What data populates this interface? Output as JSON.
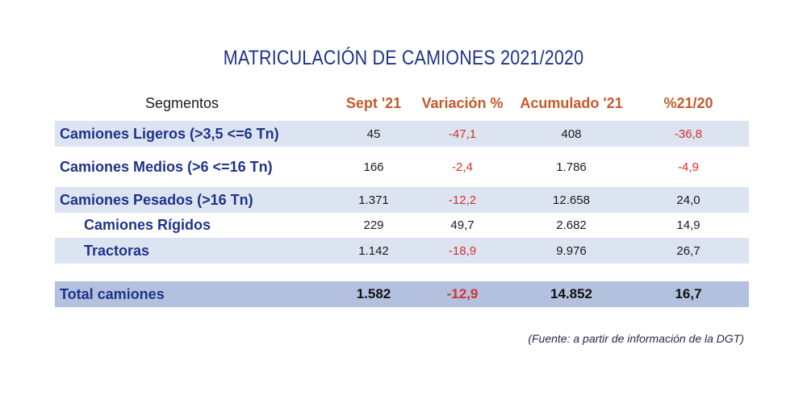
{
  "title": "MATRICULACIÓN DE CAMIONES 2021/2020",
  "headers": {
    "segment": "Segmentos",
    "sept": "Sept '21",
    "variation": "Variación %",
    "accumulated": "Acumulado '21",
    "pct": "%21/20"
  },
  "rows": [
    {
      "label": "Camiones Ligeros (>3,5 <=6 Tn)",
      "sept": "45",
      "variation": "-47,1",
      "accumulated": "408",
      "pct": "-36,8"
    },
    {
      "label": "Camiones Medios (>6 <=16 Tn)",
      "sept": "166",
      "variation": "-2,4",
      "accumulated": "1.786",
      "pct": "-4,9"
    },
    {
      "label": "Camiones Pesados (>16 Tn)",
      "sept": "1.371",
      "variation": "-12,2",
      "accumulated": "12.658",
      "pct": "24,0"
    },
    {
      "label": "Camiones Rígidos",
      "sept": "229",
      "variation": "49,7",
      "accumulated": "2.682",
      "pct": "14,9"
    },
    {
      "label": "Tractoras",
      "sept": "1.142",
      "variation": "-18,9",
      "accumulated": "9.976",
      "pct": "26,7"
    }
  ],
  "total": {
    "label": "Total camiones",
    "sept": "1.582",
    "variation": "-12,9",
    "accumulated": "14.852",
    "pct": "16,7"
  },
  "source": "(Fuente: a partir de información de la DGT)",
  "colors": {
    "title": "#1f3389",
    "header": "#c55a2a",
    "negative": "#d2322d",
    "row_shade": "#dde4f1",
    "total_bg": "#b3c1df"
  }
}
